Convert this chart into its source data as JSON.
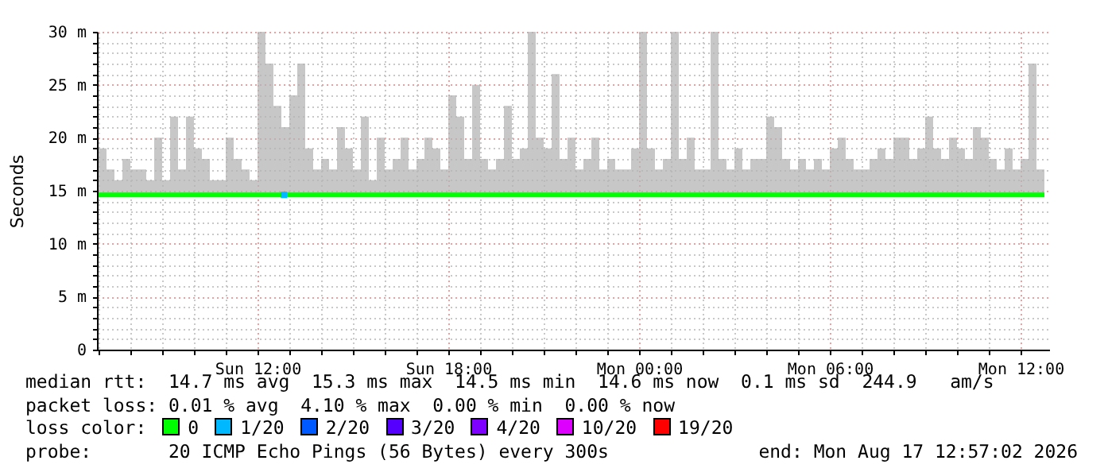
{
  "chart_data": {
    "type": "line",
    "ylabel": "Seconds",
    "legend_title": "loss color:",
    "legend": "bottom",
    "grid": true,
    "annotations": [
      "median rtt:  14.7 ms avg  15.3 ms max  14.5 ms min  14.6 ms now  0.1 ms sd  244.9   am/s",
      "packet loss: 0.01 % avg  4.10 % max  0.00 % min  0.00 % now",
      "probe:       20 ICMP Echo Pings (56 Bytes) every 300s",
      "end: Mon Aug 17 12:57:02 2026"
    ],
    "xlim": [
      "2026-08-16T06:57",
      "2026-08-17T12:54"
    ],
    "xticks": [
      {
        "value": "2026-08-16T07:00",
        "label": null
      },
      {
        "value": "2026-08-16T08:00",
        "label": null
      },
      {
        "value": "2026-08-16T09:00",
        "label": null
      },
      {
        "value": "2026-08-16T10:00",
        "label": null
      },
      {
        "value": "2026-08-16T11:00",
        "label": null
      },
      {
        "value": "2026-08-16T12:00",
        "label": "Sun 12:00"
      },
      {
        "value": "2026-08-16T13:00",
        "label": null
      },
      {
        "value": "2026-08-16T14:00",
        "label": null
      },
      {
        "value": "2026-08-16T15:00",
        "label": null
      },
      {
        "value": "2026-08-16T16:00",
        "label": null
      },
      {
        "value": "2026-08-16T17:00",
        "label": null
      },
      {
        "value": "2026-08-16T18:00",
        "label": "Sun 18:00"
      },
      {
        "value": "2026-08-16T19:00",
        "label": null
      },
      {
        "value": "2026-08-16T20:00",
        "label": null
      },
      {
        "value": "2026-08-16T21:00",
        "label": null
      },
      {
        "value": "2026-08-16T22:00",
        "label": null
      },
      {
        "value": "2026-08-16T23:00",
        "label": null
      },
      {
        "value": "2026-08-17T00:00",
        "label": "Mon 00:00"
      },
      {
        "value": "2026-08-17T01:00",
        "label": null
      },
      {
        "value": "2026-08-17T02:00",
        "label": null
      },
      {
        "value": "2026-08-17T03:00",
        "label": null
      },
      {
        "value": "2026-08-17T04:00",
        "label": null
      },
      {
        "value": "2026-08-17T05:00",
        "label": null
      },
      {
        "value": "2026-08-17T06:00",
        "label": "Mon 06:00"
      },
      {
        "value": "2026-08-17T07:00",
        "label": null
      },
      {
        "value": "2026-08-17T08:00",
        "label": null
      },
      {
        "value": "2026-08-17T09:00",
        "label": null
      },
      {
        "value": "2026-08-17T10:00",
        "label": null
      },
      {
        "value": "2026-08-17T11:00",
        "label": null
      },
      {
        "value": "2026-08-17T12:00",
        "label": "Mon 12:00"
      }
    ],
    "ylim": [
      0,
      30
    ],
    "yticks": [
      0,
      {
        "value": 1,
        "label": null
      },
      {
        "value": 2,
        "label": null
      },
      {
        "value": 3,
        "label": null
      },
      {
        "value": 4,
        "label": null
      },
      {
        "value": 5,
        "label": "5 m"
      },
      {
        "value": 6,
        "label": null
      },
      {
        "value": 7,
        "label": null
      },
      {
        "value": 8,
        "label": null
      },
      {
        "value": 9,
        "label": null
      },
      {
        "value": 10,
        "label": "10 m"
      },
      {
        "value": 11,
        "label": null
      },
      {
        "value": 12,
        "label": null
      },
      {
        "value": 13,
        "label": null
      },
      {
        "value": 14,
        "label": null
      },
      {
        "value": 15,
        "label": "15 m"
      },
      {
        "value": 16,
        "label": null
      },
      {
        "value": 17,
        "label": null
      },
      {
        "value": 18,
        "label": null
      },
      {
        "value": 19,
        "label": null
      },
      {
        "value": 20,
        "label": "20 m"
      },
      {
        "value": 21,
        "label": null
      },
      {
        "value": 22,
        "label": null
      },
      {
        "value": 23,
        "label": null
      },
      {
        "value": 24,
        "label": null
      },
      {
        "value": 25,
        "label": "25 m"
      },
      {
        "value": 26,
        "label": null
      },
      {
        "value": 27,
        "label": null
      },
      {
        "value": 28,
        "label": null
      },
      {
        "value": 29,
        "label": null
      },
      {
        "value": 30,
        "label": "30 m"
      }
    ],
    "series": [
      {
        "name": "0",
        "color": "#00ff00",
        "x": [
          "2026-08-16T07:00",
          "2026-08-16T07:15",
          "2026-08-16T07:30",
          "2026-08-16T07:45",
          "2026-08-16T08:00",
          "2026-08-16T08:15",
          "2026-08-16T08:30",
          "2026-08-16T08:45",
          "2026-08-16T09:00",
          "2026-08-16T09:15",
          "2026-08-16T09:30",
          "2026-08-16T09:45",
          "2026-08-16T10:00",
          "2026-08-16T10:15",
          "2026-08-16T10:30",
          "2026-08-16T10:45",
          "2026-08-16T11:00",
          "2026-08-16T11:15",
          "2026-08-16T11:30",
          "2026-08-16T11:45",
          "2026-08-16T12:00",
          "2026-08-16T12:15",
          "2026-08-16T12:30",
          "2026-08-16T12:45",
          "2026-08-16T13:00",
          "2026-08-16T13:15",
          "2026-08-16T13:30",
          "2026-08-16T13:45",
          "2026-08-16T14:00",
          "2026-08-16T14:15",
          "2026-08-16T14:30",
          "2026-08-16T14:45",
          "2026-08-16T15:00",
          "2026-08-16T15:15",
          "2026-08-16T15:30",
          "2026-08-16T15:45",
          "2026-08-16T16:00",
          "2026-08-16T16:15",
          "2026-08-16T16:30",
          "2026-08-16T16:45",
          "2026-08-16T17:00",
          "2026-08-16T17:15",
          "2026-08-16T17:30",
          "2026-08-16T17:45",
          "2026-08-16T18:00",
          "2026-08-16T18:15",
          "2026-08-16T18:30",
          "2026-08-16T18:45",
          "2026-08-16T19:00",
          "2026-08-16T19:15",
          "2026-08-16T19:30",
          "2026-08-16T19:45",
          "2026-08-16T20:00",
          "2026-08-16T20:15",
          "2026-08-16T20:30",
          "2026-08-16T20:45",
          "2026-08-16T21:00",
          "2026-08-16T21:15",
          "2026-08-16T21:30",
          "2026-08-16T21:45",
          "2026-08-16T22:00",
          "2026-08-16T22:15",
          "2026-08-16T22:30",
          "2026-08-16T22:45",
          "2026-08-16T23:00",
          "2026-08-16T23:15",
          "2026-08-16T23:30",
          "2026-08-16T23:45",
          "2026-08-17T00:00",
          "2026-08-17T00:15",
          "2026-08-17T00:30",
          "2026-08-17T00:45",
          "2026-08-17T01:00",
          "2026-08-17T01:15",
          "2026-08-17T01:30",
          "2026-08-17T01:45",
          "2026-08-17T02:00",
          "2026-08-17T02:15",
          "2026-08-17T02:30",
          "2026-08-17T02:45",
          "2026-08-17T03:00",
          "2026-08-17T03:15",
          "2026-08-17T03:30",
          "2026-08-17T03:45",
          "2026-08-17T04:00",
          "2026-08-17T04:15",
          "2026-08-17T04:30",
          "2026-08-17T04:45",
          "2026-08-17T05:00",
          "2026-08-17T05:15",
          "2026-08-17T05:30",
          "2026-08-17T05:45",
          "2026-08-17T06:00",
          "2026-08-17T06:15",
          "2026-08-17T06:30",
          "2026-08-17T06:45",
          "2026-08-17T07:00",
          "2026-08-17T07:15",
          "2026-08-17T07:30",
          "2026-08-17T07:45",
          "2026-08-17T08:00",
          "2026-08-17T08:15",
          "2026-08-17T08:30",
          "2026-08-17T08:45",
          "2026-08-17T09:00",
          "2026-08-17T09:15",
          "2026-08-17T09:30",
          "2026-08-17T09:45",
          "2026-08-17T10:00",
          "2026-08-17T10:15",
          "2026-08-17T10:30",
          "2026-08-17T10:45",
          "2026-08-17T11:00",
          "2026-08-17T11:15",
          "2026-08-17T11:30",
          "2026-08-17T11:45",
          "2026-08-17T12:00",
          "2026-08-17T12:15",
          "2026-08-17T12:30",
          "2026-08-17T12:45"
        ],
        "values": [
          14.6,
          14.6,
          14.6,
          14.6,
          14.6,
          14.6,
          14.6,
          14.6,
          14.6,
          14.6,
          14.6,
          14.6,
          14.6,
          14.6,
          14.6,
          14.6,
          14.6,
          14.6,
          14.6,
          14.6,
          14.6,
          14.6,
          14.6,
          14.6,
          14.6,
          14.6,
          14.6,
          14.6,
          14.6,
          14.6,
          14.6,
          14.6,
          14.6,
          14.6,
          14.6,
          14.6,
          14.6,
          14.6,
          14.6,
          14.6,
          14.6,
          14.6,
          14.6,
          14.6,
          14.6,
          14.6,
          14.6,
          14.6,
          14.6,
          14.6,
          14.6,
          14.6,
          14.6,
          14.6,
          14.6,
          14.6,
          14.6,
          14.6,
          14.6,
          14.6,
          14.6,
          14.6,
          14.6,
          14.6,
          14.6,
          14.6,
          14.6,
          14.6,
          14.6,
          14.6,
          14.6,
          14.6,
          14.6,
          14.6,
          14.6,
          14.6,
          14.6,
          14.6,
          14.6,
          14.6,
          14.6,
          14.6,
          14.6,
          14.6,
          14.6,
          14.6,
          14.6,
          14.6,
          14.6,
          14.6,
          14.6,
          14.6,
          14.6,
          14.6,
          14.6,
          14.6,
          14.6,
          14.6,
          14.6,
          14.6,
          14.6,
          14.6,
          14.6,
          14.6,
          14.6,
          14.6,
          14.6,
          14.6,
          14.6,
          14.6,
          14.6,
          14.6,
          14.6,
          14.6,
          14.6,
          14.6,
          14.6,
          14.6,
          14.6,
          14.6
        ],
        "lower": [
          14.5,
          14.5,
          14.5,
          14.5,
          14.5,
          14.5,
          14.5,
          14.5,
          14.5,
          14.5,
          14.5,
          14.5,
          14.5,
          14.5,
          14.5,
          14.5,
          14.5,
          14.5,
          14.5,
          14.5,
          14.5,
          14.5,
          14.5,
          14.5,
          14.5,
          14.5,
          14.5,
          14.5,
          14.5,
          14.5,
          14.5,
          14.5,
          14.5,
          14.5,
          14.5,
          14.5,
          14.5,
          14.5,
          14.5,
          14.5,
          14.5,
          14.5,
          14.5,
          14.5,
          14.5,
          14.5,
          14.5,
          14.5,
          14.5,
          14.5,
          14.5,
          14.5,
          14.5,
          14.5,
          14.5,
          14.5,
          14.5,
          14.5,
          14.5,
          14.5,
          14.5,
          14.5,
          14.5,
          14.5,
          14.5,
          14.5,
          14.5,
          14.5,
          14.5,
          14.5,
          14.5,
          14.5,
          14.5,
          14.5,
          14.5,
          14.5,
          14.5,
          14.5,
          14.5,
          14.5,
          14.5,
          14.5,
          14.5,
          14.5,
          14.5,
          14.5,
          14.5,
          14.5,
          14.5,
          14.5,
          14.5,
          14.5,
          14.5,
          14.5,
          14.5,
          14.5,
          14.5,
          14.5,
          14.5,
          14.5,
          14.5,
          14.5,
          14.5,
          14.5,
          14.5,
          14.5,
          14.5,
          14.5,
          14.5,
          14.5,
          14.5,
          14.5,
          14.5,
          14.5,
          14.5,
          14.5,
          14.5,
          14.5,
          14.5,
          14.5
        ],
        "upper": [
          19,
          17,
          16,
          18,
          17,
          17,
          16,
          20,
          16,
          22,
          17,
          22,
          19,
          18,
          16,
          16,
          20,
          18,
          17,
          16,
          30,
          27,
          23,
          21,
          24,
          27,
          19,
          17,
          18,
          17,
          21,
          19,
          17,
          22,
          16,
          20,
          17,
          18,
          20,
          17,
          18,
          20,
          19,
          17,
          24,
          22,
          18,
          25,
          18,
          17,
          18,
          23,
          18,
          19,
          30,
          20,
          19,
          26,
          18,
          20,
          17,
          18,
          20,
          17,
          18,
          17,
          17,
          19,
          30,
          19,
          17,
          18,
          30,
          18,
          20,
          17,
          17,
          30,
          18,
          17,
          19,
          17,
          18,
          18,
          22,
          21,
          18,
          17,
          18,
          17,
          18,
          17,
          19,
          20,
          18,
          17,
          17,
          18,
          19,
          18,
          20,
          20,
          18,
          19,
          22,
          19,
          18,
          20,
          19,
          18,
          21,
          20,
          18,
          17,
          19,
          17,
          18,
          27,
          17,
          16
        ]
      },
      {
        "name": "1/20",
        "color": "#00b8ff",
        "type": "scatter",
        "x": [
          "2026-08-16T12:50"
        ],
        "values": [
          14.6
        ]
      },
      {
        "name": "2/20",
        "color": "#0059ff",
        "type": "scatter"
      },
      {
        "name": "3/20",
        "color": "#5500ff",
        "type": "scatter"
      },
      {
        "name": "4/20",
        "color": "#7e00ff",
        "type": "scatter"
      },
      {
        "name": "10/20",
        "color": "#dd00ff",
        "type": "scatter"
      },
      {
        "name": "19/20",
        "color": "#ff0000",
        "type": "scatter"
      }
    ]
  }
}
